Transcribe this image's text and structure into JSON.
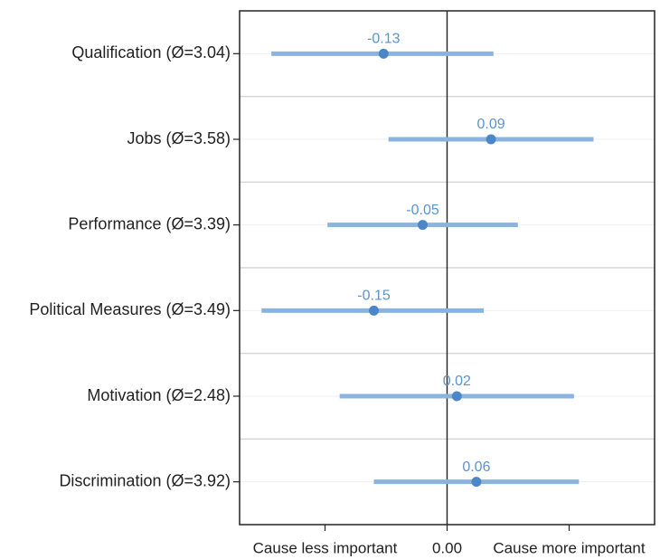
{
  "chart_data": {
    "type": "dot-interval",
    "categories": [
      "Qualification (Ø=3.04)",
      "Jobs (Ø=3.58)",
      "Performance (Ø=3.39)",
      "Political Measures (Ø=3.49)",
      "Motivation (Ø=2.48)",
      "Discrimination (Ø=3.92)"
    ],
    "values": [
      -0.13,
      0.09,
      -0.05,
      -0.15,
      0.02,
      0.06
    ],
    "lower": [
      -0.36,
      -0.12,
      -0.245,
      -0.38,
      -0.22,
      -0.15
    ],
    "upper": [
      0.095,
      0.3,
      0.145,
      0.075,
      0.26,
      0.27
    ],
    "xlim": [
      -0.425,
      0.425
    ],
    "xticks": [
      {
        "value": -0.25,
        "label": "Cause less important"
      },
      {
        "value": 0,
        "label": "0.00"
      },
      {
        "value": 0.25,
        "label": "Cause more important"
      }
    ],
    "interval_color": "#8ab4dd",
    "point_color": "#4a86c8",
    "label_color": "#5b93cf",
    "grid": true
  }
}
